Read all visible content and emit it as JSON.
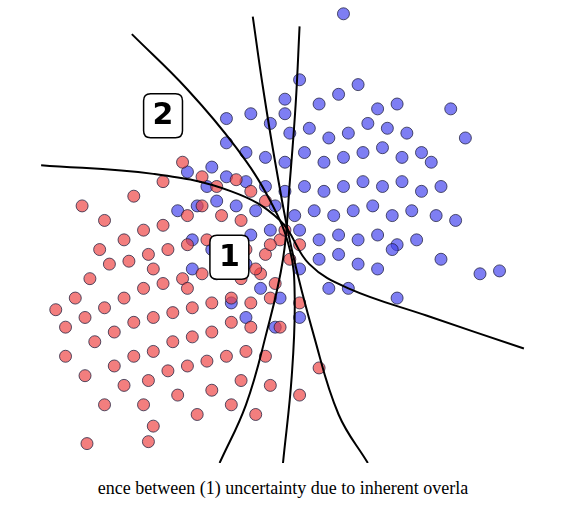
{
  "chart_data": {
    "type": "scatter",
    "xlim": [
      0,
      566
    ],
    "ylim": [
      0,
      470
    ],
    "grid": false,
    "tick_labels": false,
    "caption": "ence between (1) uncertainty due to inherent overla",
    "annotations": [
      {
        "text": "1",
        "x": 228,
        "y": 212
      },
      {
        "text": "2",
        "x": 160,
        "y": 358
      }
    ],
    "series": [
      {
        "color": "#ee4444",
        "marker": "circle",
        "values": [
          [
            77,
            265
          ],
          [
            100,
            250
          ],
          [
            130,
            275
          ],
          [
            160,
            290
          ],
          [
            180,
            310
          ],
          [
            200,
            295
          ],
          [
            215,
            285
          ],
          [
            235,
            292
          ],
          [
            250,
            280
          ],
          [
            95,
            220
          ],
          [
            120,
            230
          ],
          [
            140,
            240
          ],
          [
            160,
            245
          ],
          [
            185,
            255
          ],
          [
            200,
            265
          ],
          [
            220,
            255
          ],
          [
            240,
            250
          ],
          [
            50,
            158
          ],
          [
            70,
            170
          ],
          [
            85,
            190
          ],
          [
            105,
            205
          ],
          [
            125,
            208
          ],
          [
            145,
            215
          ],
          [
            165,
            220
          ],
          [
            185,
            225
          ],
          [
            205,
            230
          ],
          [
            225,
            225
          ],
          [
            245,
            220
          ],
          [
            265,
            215
          ],
          [
            280,
            230
          ],
          [
            60,
            140
          ],
          [
            80,
            150
          ],
          [
            100,
            160
          ],
          [
            120,
            170
          ],
          [
            140,
            180
          ],
          [
            160,
            185
          ],
          [
            180,
            190
          ],
          [
            200,
            195
          ],
          [
            220,
            200
          ],
          [
            240,
            190
          ],
          [
            260,
            195
          ],
          [
            275,
            185
          ],
          [
            90,
            125
          ],
          [
            110,
            135
          ],
          [
            130,
            145
          ],
          [
            150,
            150
          ],
          [
            170,
            155
          ],
          [
            190,
            160
          ],
          [
            210,
            165
          ],
          [
            230,
            170
          ],
          [
            250,
            165
          ],
          [
            270,
            170
          ],
          [
            300,
            165
          ],
          [
            110,
            100
          ],
          [
            130,
            110
          ],
          [
            150,
            115
          ],
          [
            170,
            125
          ],
          [
            190,
            130
          ],
          [
            210,
            135
          ],
          [
            230,
            145
          ],
          [
            250,
            140
          ],
          [
            280,
            140
          ],
          [
            320,
            98
          ],
          [
            120,
            80
          ],
          [
            145,
            85
          ],
          [
            165,
            95
          ],
          [
            185,
            100
          ],
          [
            205,
            105
          ],
          [
            225,
            110
          ],
          [
            245,
            115
          ],
          [
            265,
            110
          ],
          [
            100,
            60
          ],
          [
            140,
            60
          ],
          [
            175,
            70
          ],
          [
            210,
            75
          ],
          [
            240,
            85
          ],
          [
            270,
            80
          ],
          [
            300,
            70
          ],
          [
            150,
            38
          ],
          [
            195,
            50
          ],
          [
            230,
            60
          ],
          [
            255,
            50
          ],
          [
            82,
            20
          ],
          [
            145,
            22
          ],
          [
            80,
            90
          ],
          [
            60,
            110
          ],
          [
            290,
            210
          ],
          [
            300,
            225
          ],
          [
            285,
            240
          ],
          [
            265,
            270
          ],
          [
            255,
            200
          ],
          [
            270,
            225
          ],
          [
            185,
            180
          ],
          [
            150,
            200
          ]
        ]
      },
      {
        "color": "#4444ee",
        "marker": "circle",
        "values": [
          [
            345,
            463
          ],
          [
            285,
            375
          ],
          [
            300,
            395
          ],
          [
            320,
            370
          ],
          [
            340,
            380
          ],
          [
            360,
            390
          ],
          [
            250,
            360
          ],
          [
            270,
            350
          ],
          [
            290,
            340
          ],
          [
            310,
            345
          ],
          [
            330,
            335
          ],
          [
            350,
            340
          ],
          [
            370,
            350
          ],
          [
            390,
            345
          ],
          [
            410,
            340
          ],
          [
            225,
            330
          ],
          [
            245,
            320
          ],
          [
            265,
            315
          ],
          [
            285,
            310
          ],
          [
            305,
            320
          ],
          [
            325,
            310
          ],
          [
            345,
            315
          ],
          [
            365,
            320
          ],
          [
            385,
            325
          ],
          [
            405,
            315
          ],
          [
            425,
            320
          ],
          [
            435,
            310
          ],
          [
            185,
            300
          ],
          [
            205,
            285
          ],
          [
            225,
            295
          ],
          [
            245,
            290
          ],
          [
            265,
            285
          ],
          [
            285,
            280
          ],
          [
            305,
            285
          ],
          [
            325,
            280
          ],
          [
            345,
            285
          ],
          [
            365,
            290
          ],
          [
            385,
            285
          ],
          [
            405,
            290
          ],
          [
            425,
            280
          ],
          [
            445,
            285
          ],
          [
            175,
            260
          ],
          [
            195,
            265
          ],
          [
            215,
            270
          ],
          [
            235,
            265
          ],
          [
            255,
            260
          ],
          [
            275,
            265
          ],
          [
            295,
            255
          ],
          [
            315,
            260
          ],
          [
            335,
            255
          ],
          [
            355,
            260
          ],
          [
            375,
            265
          ],
          [
            395,
            255
          ],
          [
            415,
            260
          ],
          [
            440,
            255
          ],
          [
            460,
            250
          ],
          [
            190,
            230
          ],
          [
            210,
            220
          ],
          [
            230,
            225
          ],
          [
            250,
            235
          ],
          [
            270,
            240
          ],
          [
            300,
            240
          ],
          [
            320,
            230
          ],
          [
            340,
            235
          ],
          [
            360,
            230
          ],
          [
            380,
            235
          ],
          [
            400,
            225
          ],
          [
            420,
            230
          ],
          [
            445,
            210
          ],
          [
            485,
            195
          ],
          [
            505,
            198
          ],
          [
            190,
            200
          ],
          [
            215,
            195
          ],
          [
            245,
            205
          ],
          [
            260,
            180
          ],
          [
            280,
            170
          ],
          [
            300,
            200
          ],
          [
            320,
            210
          ],
          [
            340,
            215
          ],
          [
            360,
            205
          ],
          [
            380,
            200
          ],
          [
            400,
            170
          ],
          [
            395,
            220
          ],
          [
            300,
            150
          ],
          [
            275,
            140
          ],
          [
            245,
            150
          ],
          [
            230,
            165
          ],
          [
            330,
            180
          ],
          [
            350,
            180
          ],
          [
            470,
            335
          ],
          [
            455,
            365
          ],
          [
            285,
            360
          ],
          [
            225,
            355
          ],
          [
            210,
            305
          ],
          [
            400,
            370
          ],
          [
            380,
            365
          ]
        ]
      },
      {
        "type": "line",
        "color": "#000000",
        "line_style": "solid",
        "values": [
          [
            35,
            307
          ],
          [
            150,
            298
          ],
          [
            230,
            280
          ],
          [
            280,
            250
          ],
          [
            310,
            205
          ],
          [
            350,
            180
          ],
          [
            430,
            152
          ],
          [
            530,
            118
          ]
        ]
      },
      {
        "type": "line",
        "color": "#000000",
        "line_style": "solid",
        "values": [
          [
            128,
            442
          ],
          [
            185,
            385
          ],
          [
            235,
            325
          ],
          [
            270,
            270
          ],
          [
            290,
            220
          ],
          [
            295,
            170
          ],
          [
            292,
            90
          ],
          [
            283,
            0
          ]
        ]
      },
      {
        "type": "line",
        "color": "#000000",
        "line_style": "solid",
        "values": [
          [
            252,
            460
          ],
          [
            262,
            390
          ],
          [
            275,
            310
          ],
          [
            292,
            220
          ],
          [
            315,
            130
          ],
          [
            340,
            50
          ],
          [
            370,
            0
          ]
        ]
      },
      {
        "type": "line",
        "color": "#000000",
        "line_style": "solid",
        "values": [
          [
            300,
            450
          ],
          [
            296,
            370
          ],
          [
            290,
            290
          ],
          [
            283,
            210
          ],
          [
            265,
            130
          ],
          [
            245,
            60
          ],
          [
            218,
            0
          ]
        ]
      }
    ]
  }
}
